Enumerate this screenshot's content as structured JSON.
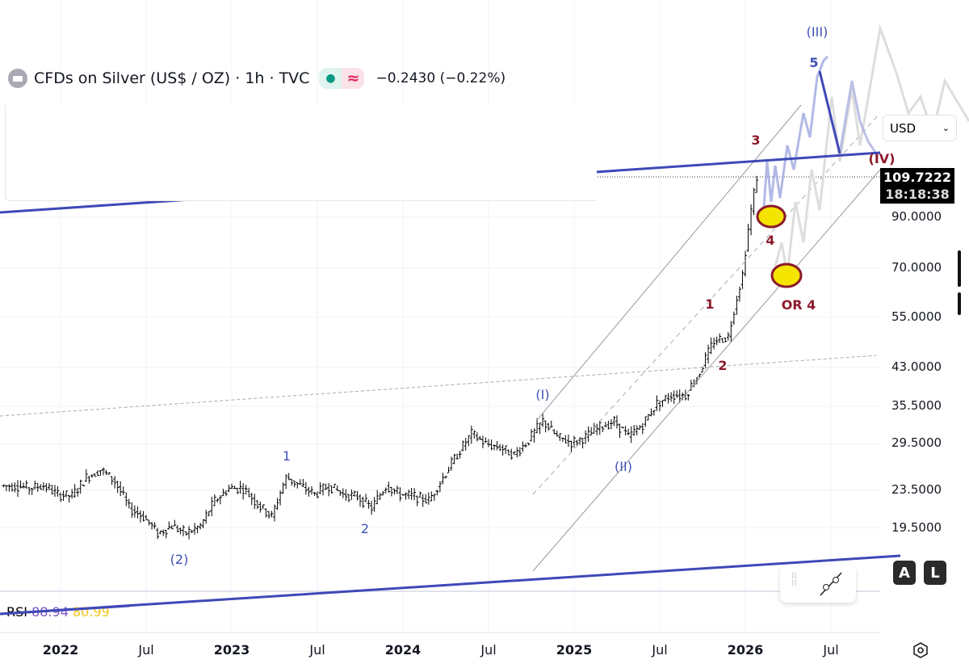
{
  "header": {
    "symbol": "CFDs on Silver (US$ / OZ) · 1h · TVC",
    "change": "−0.2430 (−0.22%)",
    "status_icon": "market-open-dot",
    "wave_icon": "approx-icon"
  },
  "currency": {
    "selected": "USD"
  },
  "last_price": {
    "value": "109.7222",
    "countdown": "18:18:38"
  },
  "buttons": {
    "auto": "A",
    "log": "L"
  },
  "rsi": {
    "label": "RSI",
    "value1": "88.94",
    "value2": "80.99",
    "color1": "#7e57c2",
    "color2": "#f5c518"
  },
  "wave_labels": {
    "w_III": "(III)",
    "w5": "5",
    "w3": "3",
    "w_IV": "(IV)",
    "w4": "4",
    "or4": "OR 4",
    "w1_top": "1",
    "w2_top": "2",
    "w_I": "(I)",
    "w_II": "(II)",
    "w1": "1",
    "w2": "2",
    "w_2": "(2)"
  },
  "colors": {
    "trendline": "#3f48b8",
    "wave_blue": "#3f51b5",
    "wave_red": "#8b1a2b",
    "target_circle": "#f4e400"
  },
  "chart_data": {
    "type": "ohlc",
    "scale": "log",
    "ylim": [
      17,
      125
    ],
    "price_ticks": [
      "90.0000",
      "70.0000",
      "55.0000",
      "43.0000",
      "35.5000",
      "29.5000",
      "23.5000",
      "19.5000"
    ],
    "time_ticks": [
      "2022",
      "Jul",
      "2023",
      "Jul",
      "2024",
      "Jul",
      "2025",
      "Jul",
      "2026",
      "Jul"
    ],
    "grid": true,
    "monthly_close": [
      [
        "2021-09",
        24
      ],
      [
        "2021-10",
        23.7
      ],
      [
        "2021-11",
        24
      ],
      [
        "2021-12",
        23
      ],
      [
        "2022-01",
        22.8
      ],
      [
        "2022-02",
        25
      ],
      [
        "2022-03",
        26
      ],
      [
        "2022-04",
        24.5
      ],
      [
        "2022-05",
        21.5
      ],
      [
        "2022-06",
        20.6
      ],
      [
        "2022-07",
        19
      ],
      [
        "2022-08",
        19.7
      ],
      [
        "2022-09",
        19
      ],
      [
        "2022-10",
        19.7
      ],
      [
        "2022-11",
        22.3
      ],
      [
        "2022-12",
        23.7
      ],
      [
        "2023-01",
        23.7
      ],
      [
        "2023-02",
        21.9
      ],
      [
        "2023-03",
        20.6
      ],
      [
        "2023-04",
        25
      ],
      [
        "2023-05",
        24
      ],
      [
        "2023-06",
        23
      ],
      [
        "2023-07",
        24
      ],
      [
        "2023-08",
        23
      ],
      [
        "2023-09",
        22.8
      ],
      [
        "2023-10",
        21.5
      ],
      [
        "2023-11",
        24
      ],
      [
        "2023-12",
        23
      ],
      [
        "2024-01",
        22.8
      ],
      [
        "2024-02",
        22.3
      ],
      [
        "2024-03",
        25
      ],
      [
        "2024-04",
        28
      ],
      [
        "2024-05",
        31
      ],
      [
        "2024-06",
        29.5
      ],
      [
        "2024-07",
        29
      ],
      [
        "2024-08",
        28
      ],
      [
        "2024-09",
        30
      ],
      [
        "2024-10",
        33
      ],
      [
        "2024-11",
        30.5
      ],
      [
        "2024-12",
        29.7
      ],
      [
        "2025-01",
        30.5
      ],
      [
        "2025-02",
        32
      ],
      [
        "2025-03",
        33
      ],
      [
        "2025-04",
        30.5
      ],
      [
        "2025-05",
        32.5
      ],
      [
        "2025-06",
        36
      ],
      [
        "2025-07",
        37.5
      ],
      [
        "2025-08",
        37.5
      ],
      [
        "2025-09",
        42
      ],
      [
        "2025-10",
        49
      ],
      [
        "2025-11",
        50
      ],
      [
        "2025-12",
        68
      ],
      [
        "2026-01",
        109.72
      ]
    ]
  }
}
